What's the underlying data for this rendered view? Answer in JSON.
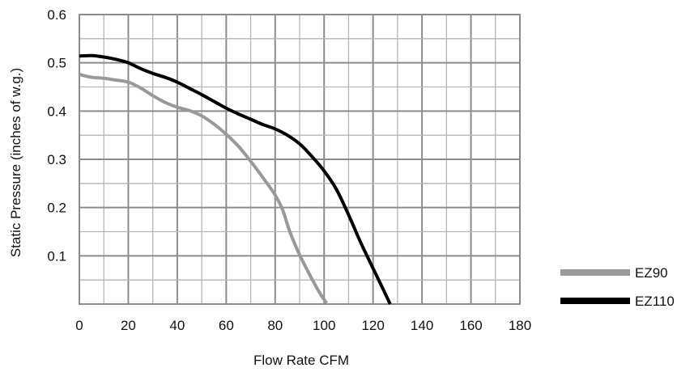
{
  "chart_data": {
    "type": "line",
    "xlabel": "Flow Rate CFM",
    "ylabel": "Static Pressure (inches of w.g.)",
    "xlim": [
      0,
      180
    ],
    "ylim": [
      0,
      0.6
    ],
    "x_major_ticks": [
      0,
      20,
      40,
      60,
      80,
      100,
      120,
      140,
      160,
      180
    ],
    "y_major_ticks": [
      0.1,
      0.2,
      0.3,
      0.4,
      0.5,
      0.6
    ],
    "x_minor_step": 10,
    "y_minor_step": 0.05,
    "grid": true,
    "legend": "right",
    "series": [
      {
        "name": "EZ90",
        "color": "#999999",
        "points": [
          [
            0,
            0.476
          ],
          [
            5,
            0.47
          ],
          [
            10,
            0.468
          ],
          [
            15,
            0.464
          ],
          [
            20,
            0.46
          ],
          [
            25,
            0.448
          ],
          [
            30,
            0.432
          ],
          [
            35,
            0.418
          ],
          [
            40,
            0.408
          ],
          [
            45,
            0.401
          ],
          [
            50,
            0.39
          ],
          [
            55,
            0.373
          ],
          [
            60,
            0.352
          ],
          [
            65,
            0.327
          ],
          [
            70,
            0.296
          ],
          [
            75,
            0.262
          ],
          [
            80,
            0.226
          ],
          [
            83,
            0.196
          ],
          [
            86,
            0.15
          ],
          [
            90,
            0.102
          ],
          [
            94,
            0.062
          ],
          [
            98,
            0.025
          ],
          [
            101,
            0.002
          ]
        ]
      },
      {
        "name": "EZ110",
        "color": "#000000",
        "points": [
          [
            0,
            0.514
          ],
          [
            5,
            0.515
          ],
          [
            10,
            0.512
          ],
          [
            15,
            0.507
          ],
          [
            20,
            0.5
          ],
          [
            25,
            0.488
          ],
          [
            30,
            0.478
          ],
          [
            35,
            0.47
          ],
          [
            40,
            0.46
          ],
          [
            45,
            0.447
          ],
          [
            50,
            0.434
          ],
          [
            55,
            0.42
          ],
          [
            60,
            0.406
          ],
          [
            65,
            0.394
          ],
          [
            70,
            0.383
          ],
          [
            75,
            0.372
          ],
          [
            80,
            0.363
          ],
          [
            85,
            0.35
          ],
          [
            90,
            0.332
          ],
          [
            95,
            0.306
          ],
          [
            100,
            0.276
          ],
          [
            105,
            0.238
          ],
          [
            110,
            0.185
          ],
          [
            115,
            0.127
          ],
          [
            120,
            0.074
          ],
          [
            124,
            0.032
          ],
          [
            127,
            0.0
          ]
        ]
      }
    ]
  }
}
